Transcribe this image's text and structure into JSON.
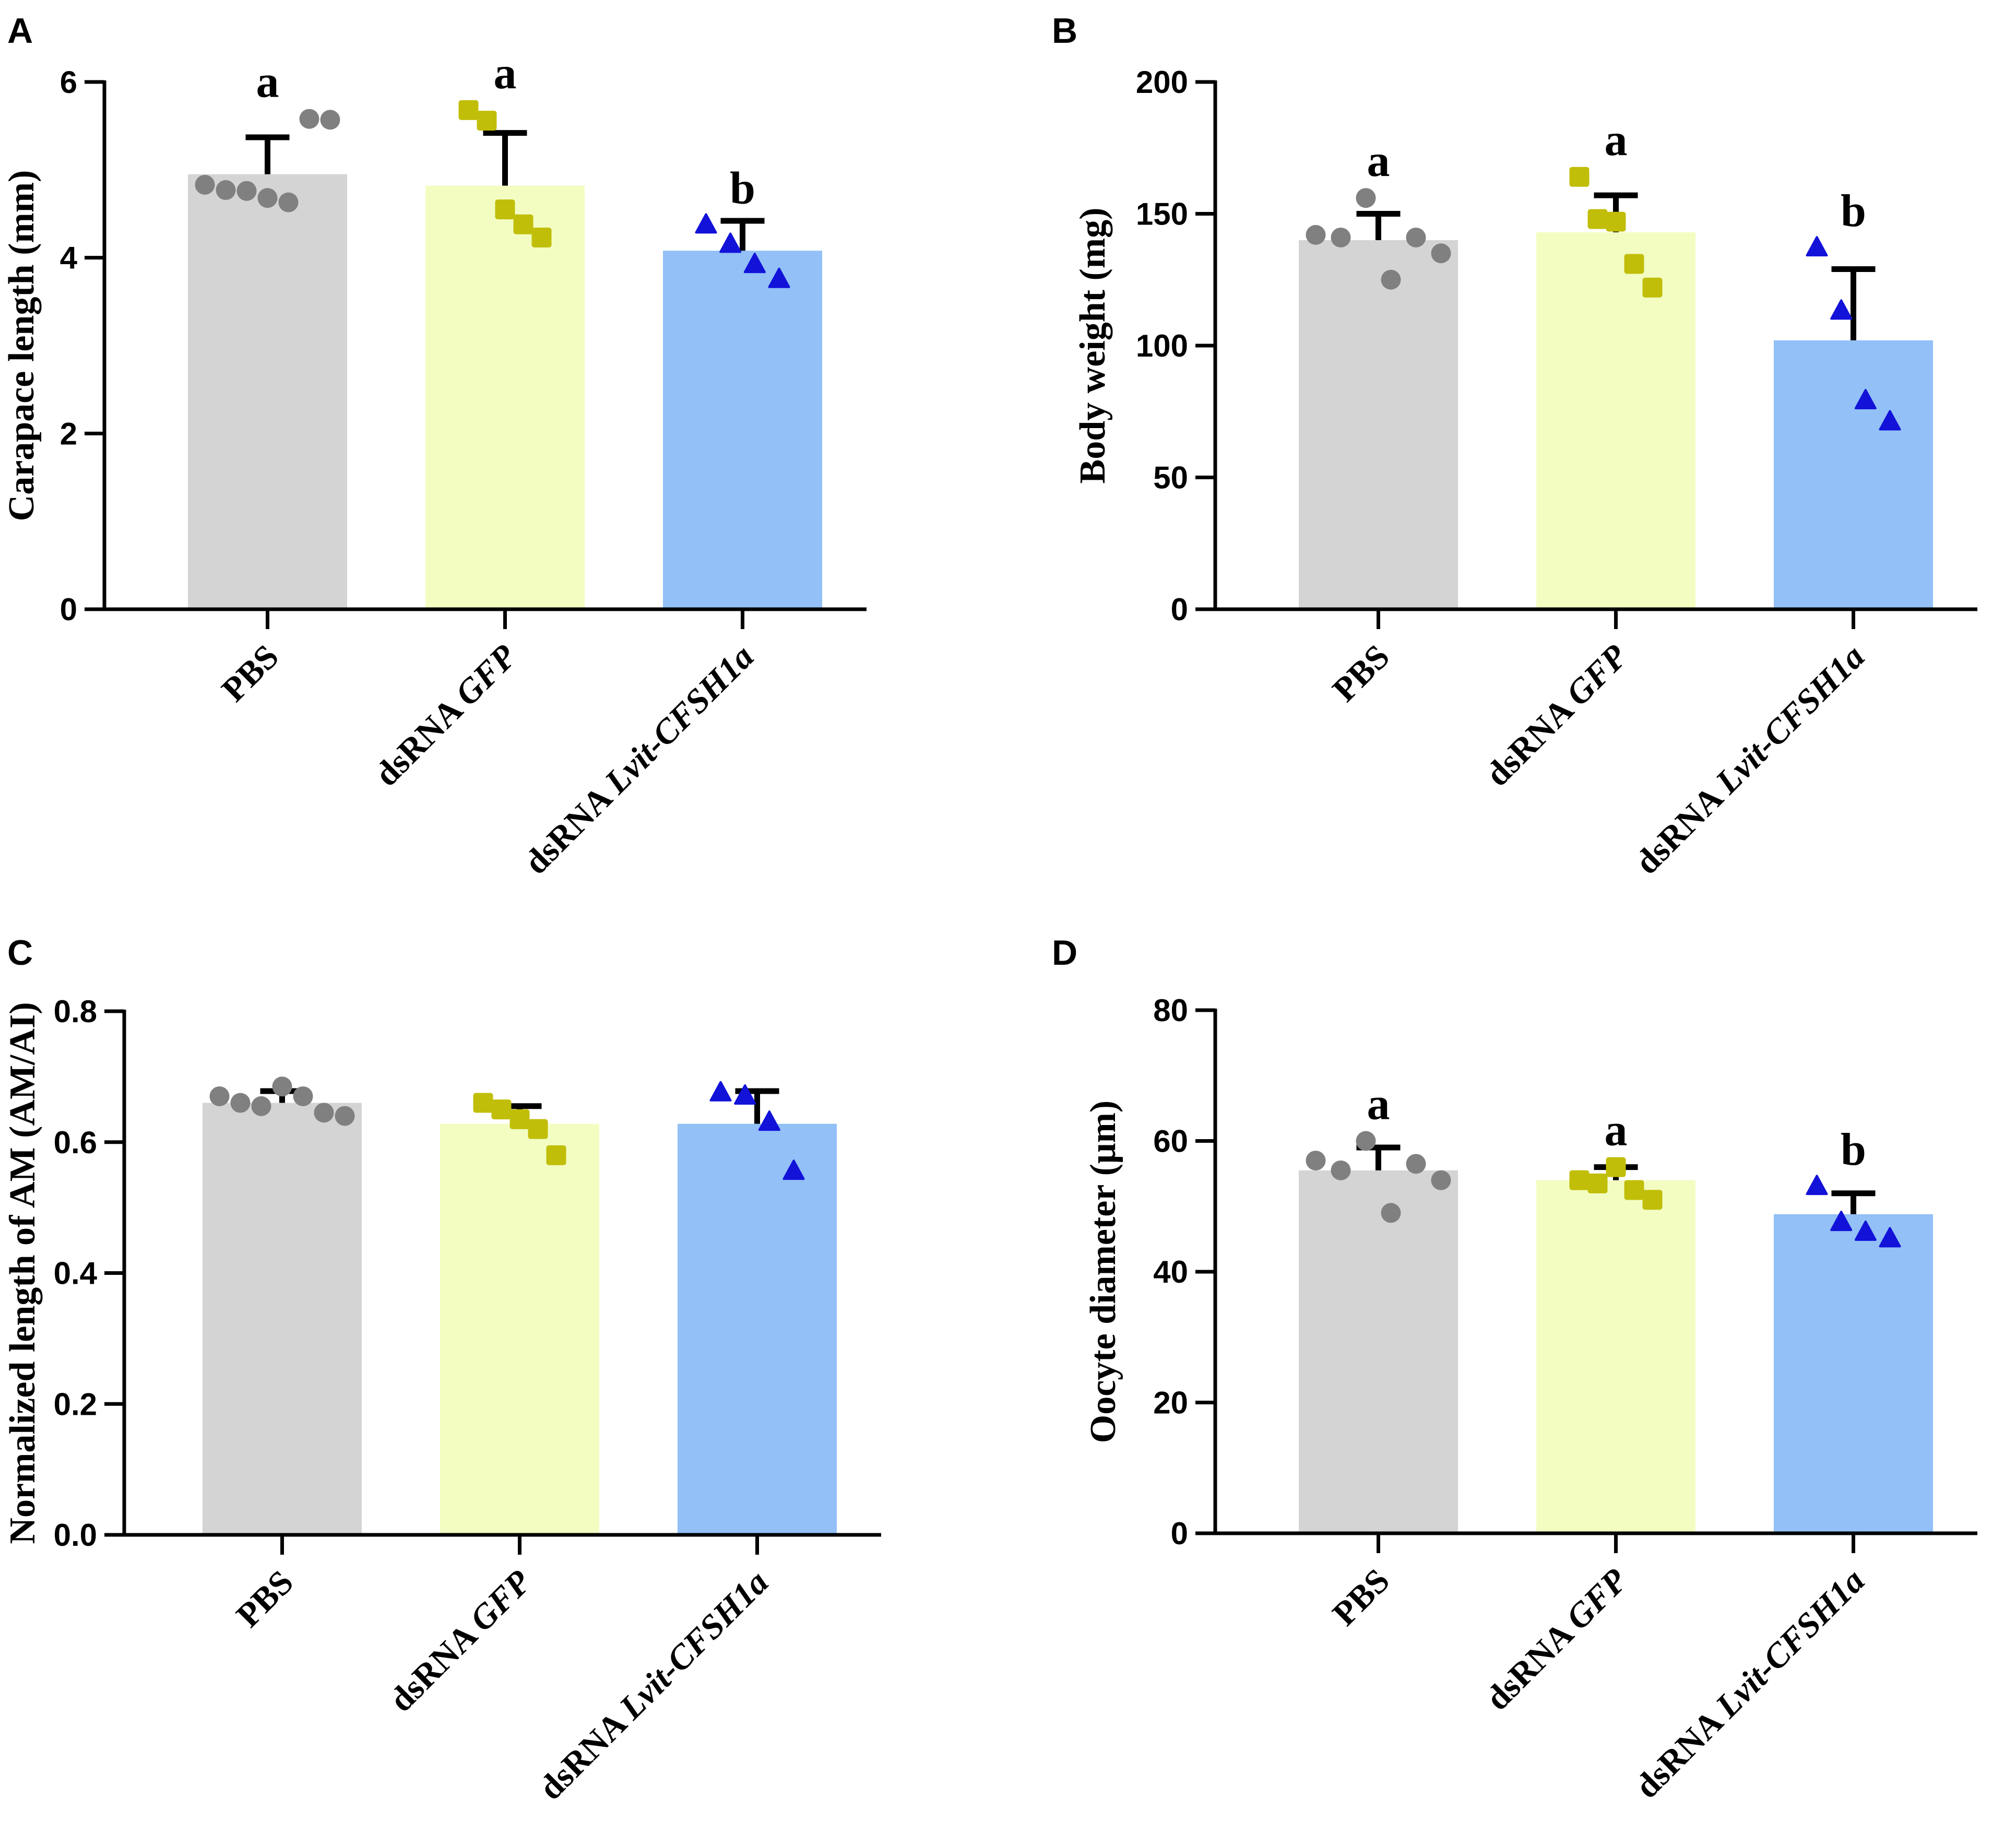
{
  "figure": {
    "categories": [
      "PBS",
      "dsRNA GFP",
      "dsRNA Lvit-CFSH1a"
    ],
    "category_parts": [
      [
        {
          "text": "PBS",
          "italic": false
        }
      ],
      [
        {
          "text": "dsRNA ",
          "italic": false
        },
        {
          "text": "GFP",
          "italic": true
        }
      ],
      [
        {
          "text": "dsRNA ",
          "italic": false
        },
        {
          "text": "Lvit-CFSH1a",
          "italic": true
        }
      ]
    ],
    "bar_colors": [
      "#d4d4d4",
      "#f3fdc2",
      "#92c0f7"
    ],
    "point_colors": [
      "#808080",
      "#c0be08",
      "#1212d9"
    ],
    "point_shapes": [
      "circle",
      "square",
      "triangle"
    ]
  },
  "chart_data": [
    {
      "panel": "A",
      "type": "bar",
      "categories": [
        "PBS",
        "dsRNA GFP",
        "dsRNA Lvit-CFSH1a"
      ],
      "title": "",
      "xlabel": "",
      "ylabel": "Carapace length (mm)",
      "ylim": [
        0,
        6
      ],
      "yticks": [
        0,
        2,
        4,
        6
      ],
      "ytick_labels": [
        "0",
        "2",
        "4",
        "6"
      ],
      "values": [
        4.95,
        4.82,
        4.08
      ],
      "error_upper": [
        5.37,
        5.42,
        4.42
      ],
      "significance": [
        "a",
        "a",
        "b"
      ],
      "points": [
        [
          4.83,
          4.77,
          4.76,
          4.68,
          4.63,
          5.58,
          5.57
        ],
        [
          5.68,
          5.56,
          4.55,
          4.38,
          4.23
        ],
        [
          4.37,
          4.15,
          3.92,
          3.75
        ]
      ]
    },
    {
      "panel": "B",
      "type": "bar",
      "categories": [
        "PBS",
        "dsRNA GFP",
        "dsRNA Lvit-CFSH1a"
      ],
      "title": "",
      "xlabel": "",
      "ylabel": "Body weight (mg)",
      "ylim": [
        0,
        200
      ],
      "yticks": [
        0,
        50,
        100,
        150,
        200
      ],
      "ytick_labels": [
        "0",
        "50",
        "100",
        "150",
        "200"
      ],
      "values": [
        140,
        143,
        102
      ],
      "error_upper": [
        150,
        157,
        129
      ],
      "significance": [
        "a",
        "a",
        "b"
      ],
      "points": [
        [
          142,
          141,
          156,
          125,
          141,
          135
        ],
        [
          164,
          148,
          147,
          131,
          122
        ],
        [
          137,
          113,
          79,
          71
        ]
      ]
    },
    {
      "panel": "C",
      "type": "bar",
      "categories": [
        "PBS",
        "dsRNA GFP",
        "dsRNA Lvit-CFSH1a"
      ],
      "title": "",
      "xlabel": "",
      "ylabel": "Normalized length of AM (AM/AI)",
      "ylim": [
        0,
        0.8
      ],
      "yticks": [
        0,
        0.2,
        0.4,
        0.6,
        0.8
      ],
      "ytick_labels": [
        "0.0",
        "0.2",
        "0.4",
        "0.6",
        "0.8"
      ],
      "values": [
        0.66,
        0.628,
        0.628
      ],
      "error_upper": [
        0.678,
        0.655,
        0.678
      ],
      "significance": [
        "",
        "",
        ""
      ],
      "points": [
        [
          0.67,
          0.66,
          0.655,
          0.685,
          0.67,
          0.645,
          0.64
        ],
        [
          0.66,
          0.65,
          0.635,
          0.62,
          0.58
        ],
        [
          0.675,
          0.67,
          0.63,
          0.555
        ]
      ]
    },
    {
      "panel": "D",
      "type": "bar",
      "categories": [
        "PBS",
        "dsRNA GFP",
        "dsRNA Lvit-CFSH1a"
      ],
      "title": "",
      "xlabel": "",
      "ylabel": "Oocyte diameter (μm)",
      "ylim": [
        0,
        80
      ],
      "yticks": [
        0,
        20,
        40,
        60,
        80
      ],
      "ytick_labels": [
        "0",
        "20",
        "40",
        "60",
        "80"
      ],
      "values": [
        55.5,
        54,
        48.8
      ],
      "error_upper": [
        59,
        56,
        52
      ],
      "significance": [
        "a",
        "a",
        "b"
      ],
      "points": [
        [
          57,
          55.5,
          60,
          49,
          56.5,
          54
        ],
        [
          54,
          53.5,
          56,
          52.5,
          51
        ],
        [
          53,
          47.5,
          46,
          45
        ]
      ]
    }
  ]
}
